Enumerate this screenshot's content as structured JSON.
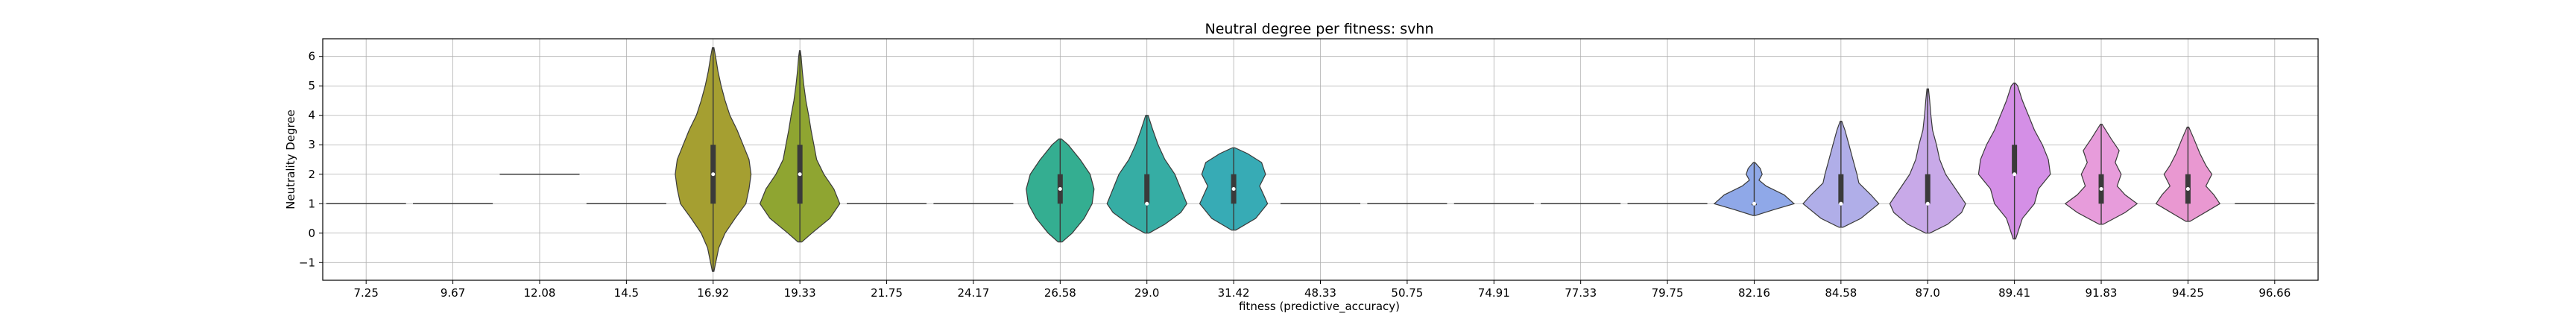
{
  "chart_data": {
    "type": "violin",
    "title": "Neutral degree per fitness: svhn",
    "xlabel": "fitness (predictive_accuracy)",
    "ylabel": "Neutrality Degree",
    "ylim": [
      -1.6,
      6.6
    ],
    "yticks": [
      "−1",
      "0",
      "1",
      "2",
      "3",
      "4",
      "5",
      "6"
    ],
    "ytick_values": [
      -1,
      0,
      1,
      2,
      3,
      4,
      5,
      6
    ],
    "grid": true,
    "categories": [
      "7.25",
      "9.67",
      "12.08",
      "14.5",
      "16.92",
      "19.33",
      "21.75",
      "24.17",
      "26.58",
      "29.0",
      "31.42",
      "48.33",
      "50.75",
      "74.91",
      "77.33",
      "79.75",
      "82.16",
      "84.58",
      "87.0",
      "89.41",
      "91.83",
      "94.25",
      "96.66"
    ],
    "violins": [
      {
        "color": "#f77189",
        "min": 1.0,
        "max": 1.0,
        "median": 1.0,
        "q1": 1.0,
        "q3": 1.0
      },
      {
        "color": "#f37932",
        "min": 1.0,
        "max": 1.0,
        "median": 1.0,
        "q1": 1.0,
        "q3": 1.0
      },
      {
        "color": "#d58c32",
        "min": 2.0,
        "max": 2.0,
        "median": 2.0,
        "q1": 2.0,
        "q3": 2.0
      },
      {
        "color": "#bb9832",
        "min": 1.0,
        "max": 1.0,
        "median": 1.0,
        "q1": 1.0,
        "q3": 1.0
      },
      {
        "color": "#a59f31",
        "min": -1.3,
        "max": 6.3,
        "median": 2.0,
        "q1": 1.0,
        "q3": 3.0,
        "profile": [
          [
            -1.3,
            0.02
          ],
          [
            -0.5,
            0.14
          ],
          [
            0,
            0.3
          ],
          [
            0.5,
            0.55
          ],
          [
            1,
            0.82
          ],
          [
            1.5,
            0.9
          ],
          [
            2,
            0.95
          ],
          [
            2.5,
            0.9
          ],
          [
            3,
            0.75
          ],
          [
            3.5,
            0.6
          ],
          [
            4,
            0.42
          ],
          [
            4.5,
            0.3
          ],
          [
            5,
            0.2
          ],
          [
            5.5,
            0.12
          ],
          [
            6,
            0.06
          ],
          [
            6.3,
            0.02
          ]
        ]
      },
      {
        "color": "#8fa531",
        "min": -0.3,
        "max": 6.2,
        "median": 2.0,
        "q1": 1.0,
        "q3": 3.0,
        "profile": [
          [
            -0.3,
            0.05
          ],
          [
            0,
            0.3
          ],
          [
            0.5,
            0.75
          ],
          [
            1,
            1.0
          ],
          [
            1.5,
            0.85
          ],
          [
            2,
            0.6
          ],
          [
            2.5,
            0.42
          ],
          [
            3,
            0.35
          ],
          [
            3.5,
            0.28
          ],
          [
            4,
            0.22
          ],
          [
            4.5,
            0.15
          ],
          [
            5,
            0.1
          ],
          [
            5.5,
            0.06
          ],
          [
            6,
            0.03
          ],
          [
            6.2,
            0.01
          ]
        ]
      },
      {
        "color": "#50b131",
        "min": 1.0,
        "max": 1.0,
        "median": 1.0,
        "q1": 1.0,
        "q3": 1.0
      },
      {
        "color": "#33b07a",
        "min": 1.0,
        "max": 1.0,
        "median": 1.0,
        "q1": 1.0,
        "q3": 1.0
      },
      {
        "color": "#34ae91",
        "min": -0.3,
        "max": 3.2,
        "median": 1.5,
        "q1": 1.0,
        "q3": 2.0,
        "profile": [
          [
            -0.3,
            0.05
          ],
          [
            0,
            0.3
          ],
          [
            0.5,
            0.6
          ],
          [
            1,
            0.8
          ],
          [
            1.5,
            0.85
          ],
          [
            2,
            0.75
          ],
          [
            2.5,
            0.5
          ],
          [
            3,
            0.2
          ],
          [
            3.2,
            0.03
          ]
        ]
      },
      {
        "color": "#36ada4",
        "min": 0.0,
        "max": 4.0,
        "median": 1.0,
        "q1": 1.0,
        "q3": 2.0,
        "profile": [
          [
            0,
            0.05
          ],
          [
            0.3,
            0.45
          ],
          [
            0.7,
            0.85
          ],
          [
            1,
            1.0
          ],
          [
            1.5,
            0.85
          ],
          [
            2,
            0.7
          ],
          [
            2.5,
            0.45
          ],
          [
            3,
            0.28
          ],
          [
            3.5,
            0.15
          ],
          [
            4,
            0.03
          ]
        ]
      },
      {
        "color": "#37abb5",
        "min": 0.1,
        "max": 2.9,
        "median": 1.5,
        "q1": 1.0,
        "q3": 2.0,
        "profile": [
          [
            0.1,
            0.05
          ],
          [
            0.5,
            0.55
          ],
          [
            1,
            0.85
          ],
          [
            1.3,
            0.75
          ],
          [
            1.6,
            0.65
          ],
          [
            2,
            0.8
          ],
          [
            2.4,
            0.7
          ],
          [
            2.7,
            0.35
          ],
          [
            2.9,
            0.03
          ]
        ]
      },
      {
        "color": "#38a9c5",
        "min": 1.0,
        "max": 1.0,
        "median": 1.0,
        "q1": 1.0,
        "q3": 1.0
      },
      {
        "color": "#3aa6da",
        "min": 1.0,
        "max": 1.0,
        "median": 1.0,
        "q1": 1.0,
        "q3": 1.0
      },
      {
        "color": "#6e9bf4",
        "min": 1.0,
        "max": 1.0,
        "median": 1.0,
        "q1": 1.0,
        "q3": 1.0
      },
      {
        "color": "#a48cf4",
        "min": 1.0,
        "max": 1.0,
        "median": 1.0,
        "q1": 1.0,
        "q3": 1.0
      },
      {
        "color": "#cc7af4",
        "min": 1.0,
        "max": 1.0,
        "median": 1.0,
        "q1": 1.0,
        "q3": 1.0
      },
      {
        "color": "#8fa8e8",
        "min": 0.6,
        "max": 2.4,
        "median": 1.0,
        "q1": 1.0,
        "q3": 1.0,
        "profile": [
          [
            0.6,
            0.03
          ],
          [
            0.8,
            0.5
          ],
          [
            1,
            1.0
          ],
          [
            1.3,
            0.75
          ],
          [
            1.6,
            0.3
          ],
          [
            1.8,
            0.12
          ],
          [
            2,
            0.2
          ],
          [
            2.2,
            0.15
          ],
          [
            2.4,
            0.02
          ]
        ]
      },
      {
        "color": "#b0aee8",
        "min": 0.2,
        "max": 3.8,
        "median": 1.0,
        "q1": 1.0,
        "q3": 2.0,
        "profile": [
          [
            0.2,
            0.05
          ],
          [
            0.5,
            0.5
          ],
          [
            1,
            0.95
          ],
          [
            1.3,
            0.75
          ],
          [
            1.7,
            0.45
          ],
          [
            2,
            0.4
          ],
          [
            2.5,
            0.3
          ],
          [
            3,
            0.2
          ],
          [
            3.5,
            0.1
          ],
          [
            3.8,
            0.02
          ]
        ]
      },
      {
        "color": "#c8a9e8",
        "min": 0.0,
        "max": 4.9,
        "median": 1.0,
        "q1": 1.0,
        "q3": 2.0,
        "profile": [
          [
            0,
            0.05
          ],
          [
            0.3,
            0.5
          ],
          [
            0.7,
            0.85
          ],
          [
            1,
            0.95
          ],
          [
            1.5,
            0.7
          ],
          [
            2,
            0.45
          ],
          [
            2.5,
            0.3
          ],
          [
            3,
            0.22
          ],
          [
            3.5,
            0.12
          ],
          [
            4,
            0.08
          ],
          [
            4.5,
            0.05
          ],
          [
            4.9,
            0.02
          ]
        ]
      },
      {
        "color": "#d48fe6",
        "min": -0.2,
        "max": 5.1,
        "median": 2.0,
        "q1": 2.0,
        "q3": 3.0,
        "profile": [
          [
            -0.2,
            0.03
          ],
          [
            0.5,
            0.2
          ],
          [
            1,
            0.5
          ],
          [
            1.5,
            0.6
          ],
          [
            2,
            0.9
          ],
          [
            2.5,
            0.85
          ],
          [
            3,
            0.7
          ],
          [
            3.5,
            0.5
          ],
          [
            4,
            0.35
          ],
          [
            4.5,
            0.2
          ],
          [
            5,
            0.08
          ],
          [
            5.1,
            0.02
          ]
        ]
      },
      {
        "color": "#e79cdb",
        "min": 0.3,
        "max": 3.7,
        "median": 1.5,
        "q1": 1.0,
        "q3": 2.0,
        "profile": [
          [
            0.3,
            0.05
          ],
          [
            0.7,
            0.6
          ],
          [
            1,
            0.9
          ],
          [
            1.3,
            0.6
          ],
          [
            1.6,
            0.4
          ],
          [
            2,
            0.5
          ],
          [
            2.4,
            0.35
          ],
          [
            2.8,
            0.45
          ],
          [
            3.2,
            0.25
          ],
          [
            3.7,
            0.02
          ]
        ]
      },
      {
        "color": "#e998d1",
        "min": 0.4,
        "max": 3.6,
        "median": 1.5,
        "q1": 1.0,
        "q3": 2.0,
        "profile": [
          [
            0.4,
            0.05
          ],
          [
            0.8,
            0.55
          ],
          [
            1,
            0.8
          ],
          [
            1.3,
            0.65
          ],
          [
            1.6,
            0.45
          ],
          [
            2,
            0.6
          ],
          [
            2.3,
            0.45
          ],
          [
            2.7,
            0.3
          ],
          [
            3.2,
            0.15
          ],
          [
            3.6,
            0.02
          ]
        ]
      },
      {
        "color": "#f5a2c6",
        "min": 1.0,
        "max": 1.0,
        "median": 1.0,
        "q1": 1.0,
        "q3": 1.0
      }
    ]
  }
}
